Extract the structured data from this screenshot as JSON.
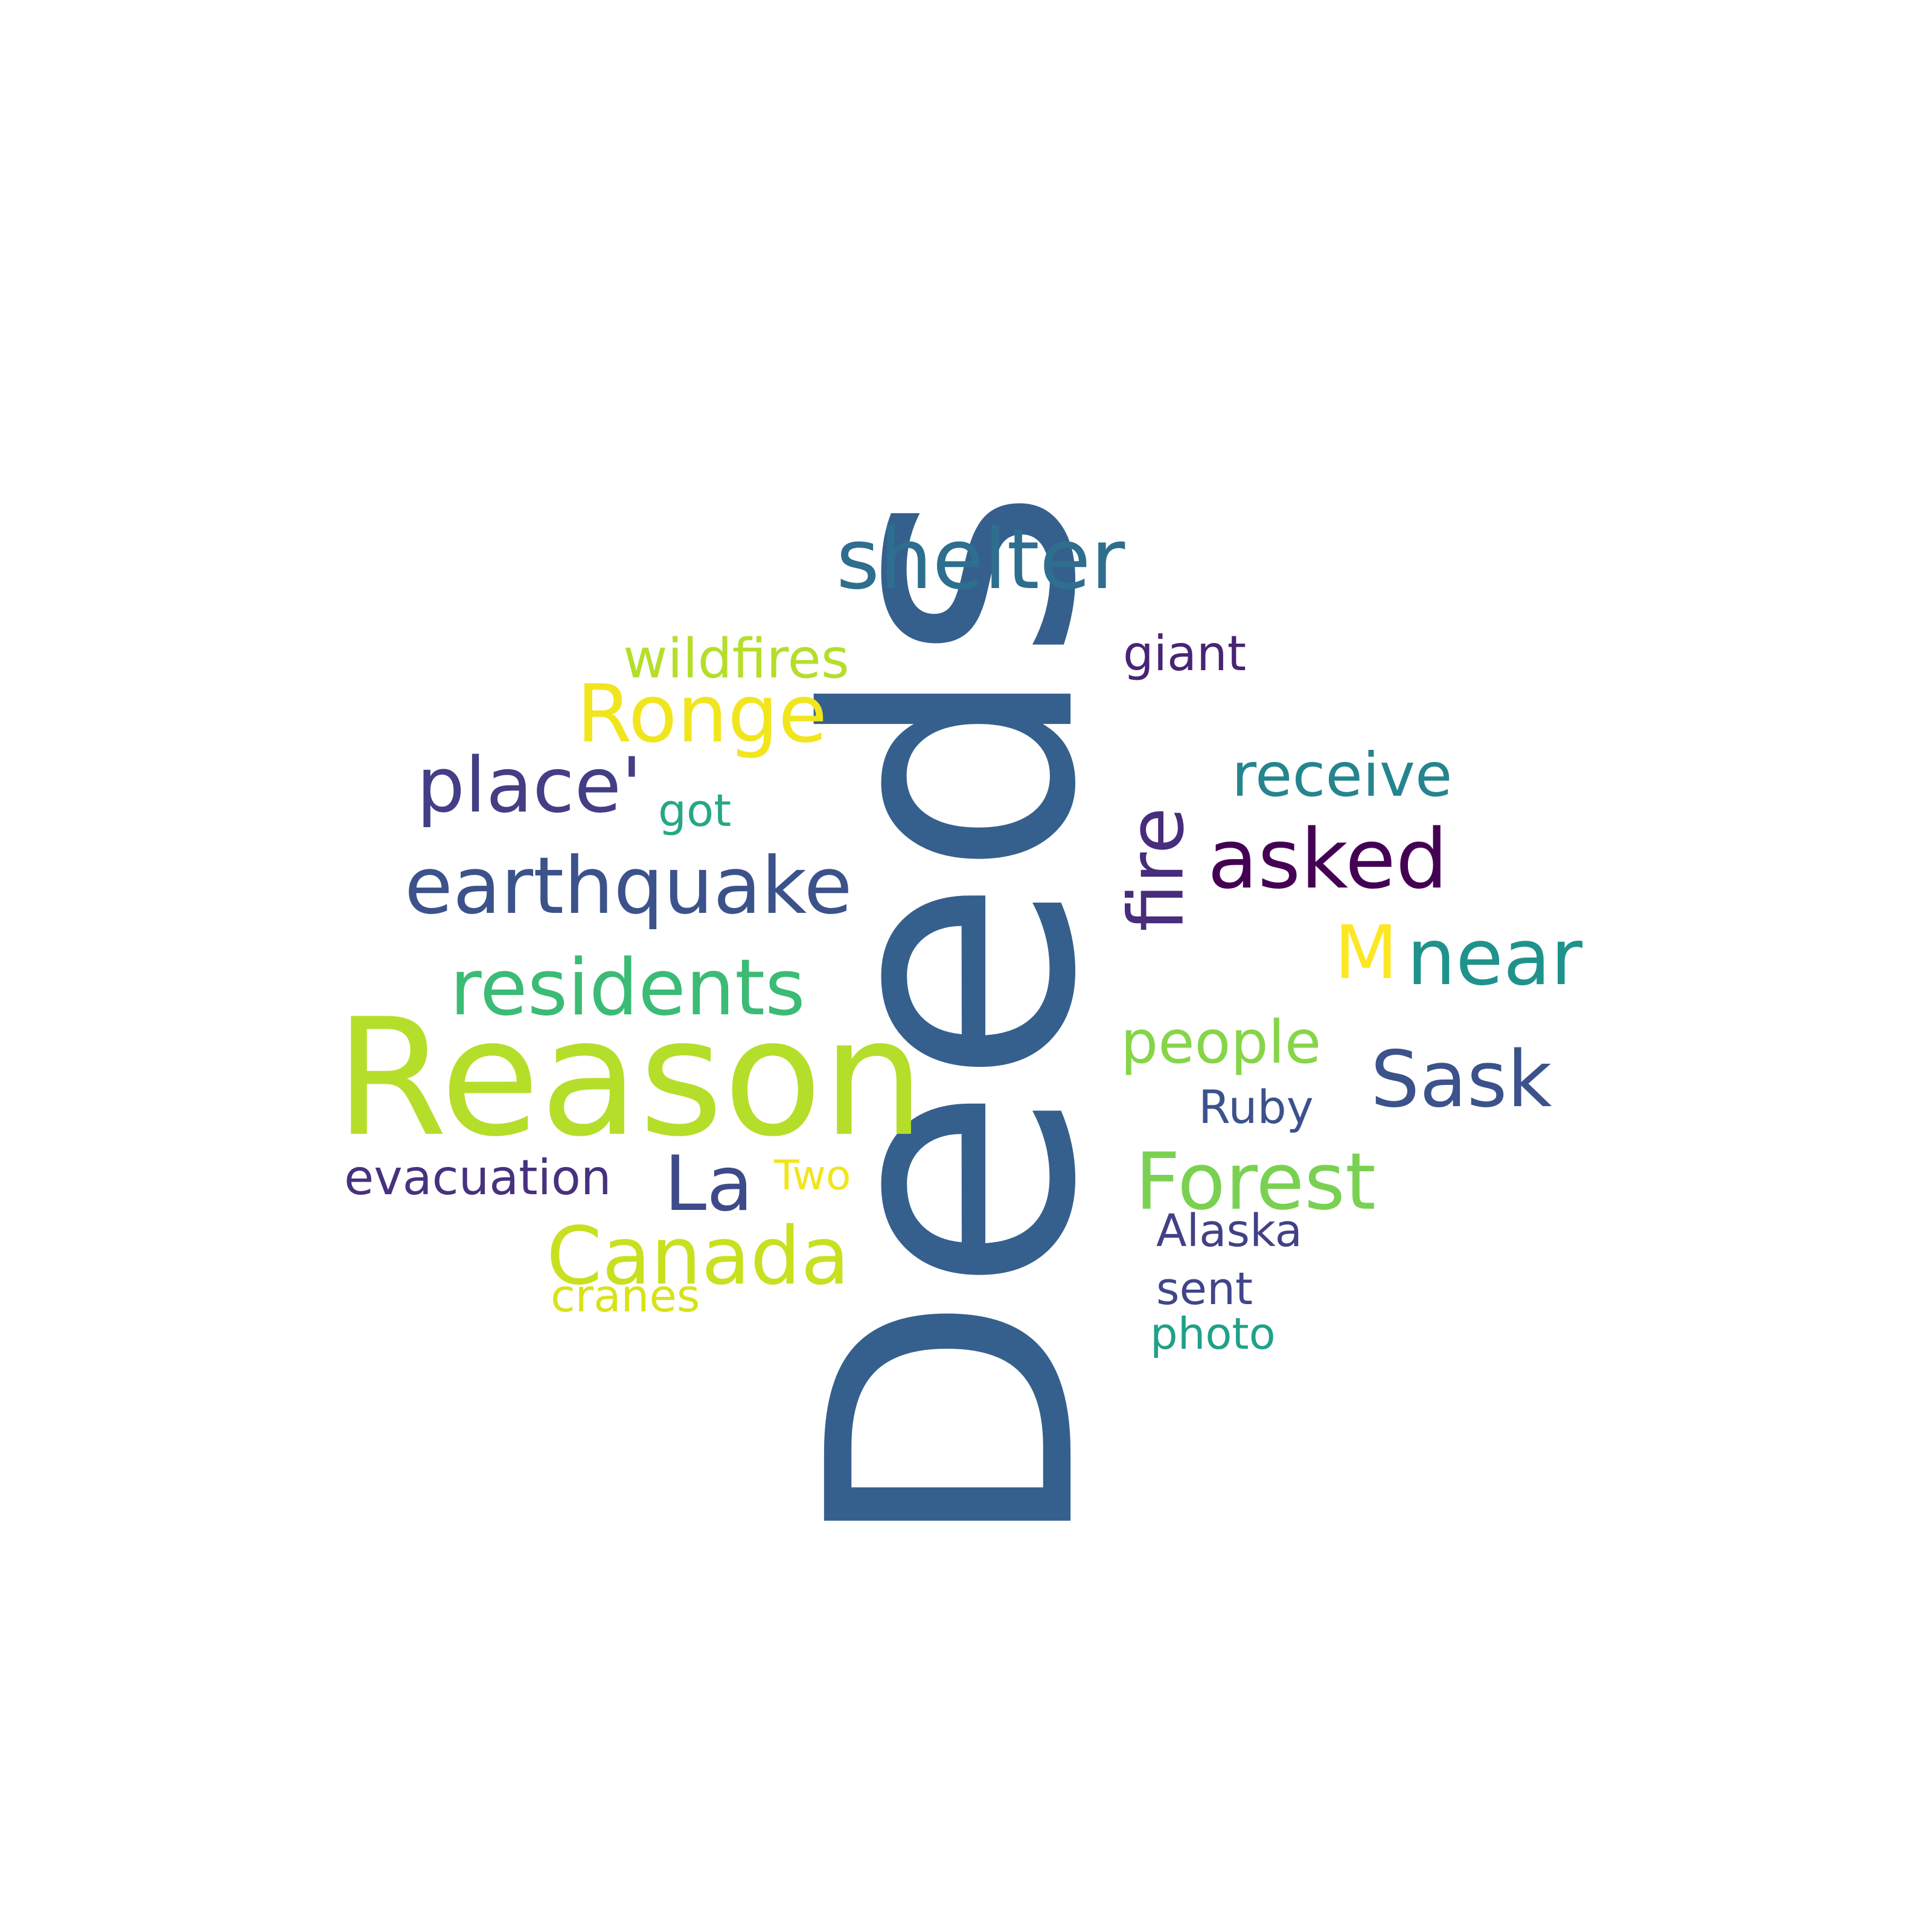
{
  "words": [
    {
      "text": "Deeds",
      "color": "#35608d"
    },
    {
      "text": "Reason",
      "color": "#b5de2b"
    },
    {
      "text": "shelter",
      "color": "#2e6e8e"
    },
    {
      "text": "earthquake",
      "color": "#3b528b"
    },
    {
      "text": "residents",
      "color": "#3bbb75"
    },
    {
      "text": "Ronge",
      "color": "#f1e51d"
    },
    {
      "text": "place'",
      "color": "#433e85"
    },
    {
      "text": "asked",
      "color": "#440154"
    },
    {
      "text": "near",
      "color": "#20928c"
    },
    {
      "text": "Sask",
      "color": "#3b528b"
    },
    {
      "text": "Forest",
      "color": "#7ad151"
    },
    {
      "text": "Canada",
      "color": "#c8e020"
    },
    {
      "text": "fire",
      "color": "#472d7b"
    },
    {
      "text": "La",
      "color": "#3e4a89"
    },
    {
      "text": "wildfires",
      "color": "#b5de2b"
    },
    {
      "text": "receive",
      "color": "#25858e"
    },
    {
      "text": "people",
      "color": "#86d549"
    },
    {
      "text": "M",
      "color": "#fde725"
    },
    {
      "text": "giant",
      "color": "#482475"
    },
    {
      "text": "got",
      "color": "#26a884"
    },
    {
      "text": "evacuation",
      "color": "#46327e"
    },
    {
      "text": "Two",
      "color": "#f1e51d"
    },
    {
      "text": "Ruby",
      "color": "#3b528b"
    },
    {
      "text": "Alaska",
      "color": "#424086"
    },
    {
      "text": "cranes",
      "color": "#d8e219"
    },
    {
      "text": "sent",
      "color": "#404688"
    },
    {
      "text": "photo",
      "color": "#1fa187"
    }
  ]
}
